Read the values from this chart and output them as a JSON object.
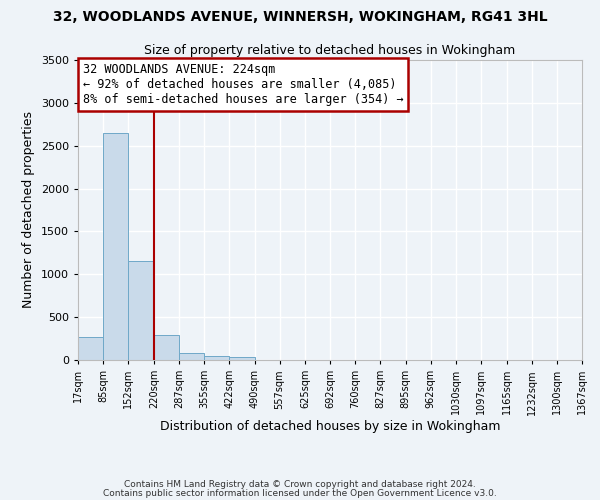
{
  "title": "32, WOODLANDS AVENUE, WINNERSH, WOKINGHAM, RG41 3HL",
  "subtitle": "Size of property relative to detached houses in Wokingham",
  "xlabel": "Distribution of detached houses by size in Wokingham",
  "ylabel": "Number of detached properties",
  "bar_edges": [
    17,
    85,
    152,
    220,
    287,
    355,
    422,
    490,
    557,
    625,
    692,
    760,
    827,
    895,
    962,
    1030,
    1097,
    1165,
    1232,
    1300,
    1367
  ],
  "bar_heights": [
    270,
    2650,
    1150,
    290,
    80,
    50,
    30,
    0,
    0,
    0,
    0,
    0,
    0,
    0,
    0,
    0,
    0,
    0,
    0,
    0
  ],
  "bar_color": "#c9daea",
  "bar_edge_color": "#6fa8c8",
  "property_line_x": 220,
  "property_line_color": "#aa0000",
  "ylim": [
    0,
    3500
  ],
  "yticks": [
    0,
    500,
    1000,
    1500,
    2000,
    2500,
    3000,
    3500
  ],
  "annotation_text_line1": "32 WOODLANDS AVENUE: 224sqm",
  "annotation_text_line2": "← 92% of detached houses are smaller (4,085)",
  "annotation_text_line3": "8% of semi-detached houses are larger (354) →",
  "annotation_box_color": "#ffffff",
  "annotation_box_edge_color": "#aa0000",
  "bg_color": "#eef3f8",
  "grid_color": "#ffffff",
  "footnote1": "Contains HM Land Registry data © Crown copyright and database right 2024.",
  "footnote2": "Contains public sector information licensed under the Open Government Licence v3.0."
}
